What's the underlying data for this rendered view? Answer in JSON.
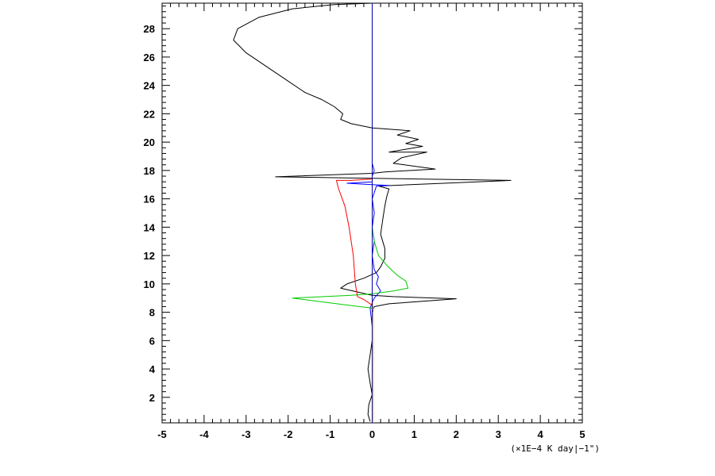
{
  "chart_data": {
    "type": "line",
    "title": "",
    "xlabel": "",
    "ylabel": "",
    "x_units_label": "(×1E−4 K day|−1\")",
    "xlim": [
      -5,
      5
    ],
    "ylim": [
      0.2,
      29.8
    ],
    "grid": false,
    "x_ticks": [
      -5,
      -4,
      -3,
      -2,
      -1,
      0,
      1,
      2,
      3,
      4,
      5
    ],
    "y_ticks": [
      2,
      4,
      6,
      8,
      10,
      12,
      14,
      16,
      18,
      20,
      22,
      24,
      26,
      28
    ],
    "series": [
      {
        "color": "#000000",
        "points": [
          [
            -0.05,
            0.3
          ],
          [
            -0.1,
            0.8
          ],
          [
            -0.08,
            1.5
          ],
          [
            0.0,
            2.2
          ],
          [
            -0.05,
            3.0
          ],
          [
            -0.1,
            4.0
          ],
          [
            -0.05,
            5.0
          ],
          [
            0.0,
            6.0
          ],
          [
            0.0,
            7.0
          ],
          [
            0.0,
            8.0
          ],
          [
            0.05,
            8.4
          ],
          [
            0.4,
            8.6
          ],
          [
            2.0,
            8.95
          ],
          [
            0.5,
            9.1
          ],
          [
            0.0,
            9.2
          ],
          [
            -0.3,
            9.4
          ],
          [
            -0.75,
            9.7
          ],
          [
            -0.6,
            10.0
          ],
          [
            -0.2,
            10.4
          ],
          [
            0.1,
            10.8
          ],
          [
            0.2,
            11.2
          ],
          [
            0.3,
            11.8
          ],
          [
            0.3,
            12.5
          ],
          [
            0.2,
            13.5
          ],
          [
            0.25,
            14.5
          ],
          [
            0.3,
            15.5
          ],
          [
            0.35,
            16.2
          ],
          [
            0.4,
            16.7
          ],
          [
            0.15,
            16.9
          ],
          [
            3.3,
            17.3
          ],
          [
            -2.3,
            17.55
          ],
          [
            0.0,
            17.8
          ],
          [
            0.3,
            17.9
          ],
          [
            1.5,
            18.1
          ],
          [
            0.5,
            18.5
          ],
          [
            0.7,
            18.9
          ],
          [
            1.3,
            19.3
          ],
          [
            0.4,
            19.3
          ],
          [
            1.2,
            19.7
          ],
          [
            0.8,
            19.9
          ],
          [
            1.1,
            20.2
          ],
          [
            0.6,
            20.5
          ],
          [
            0.9,
            20.8
          ],
          [
            0.0,
            21.0
          ],
          [
            -0.5,
            21.3
          ],
          [
            -0.75,
            21.6
          ],
          [
            -0.7,
            22.0
          ],
          [
            -0.9,
            22.5
          ],
          [
            -1.2,
            23.0
          ],
          [
            -1.6,
            23.5
          ],
          [
            -2.1,
            24.5
          ],
          [
            -2.5,
            25.3
          ],
          [
            -3.0,
            26.3
          ],
          [
            -3.3,
            27.2
          ],
          [
            -3.2,
            28.0
          ],
          [
            -2.7,
            28.8
          ],
          [
            -1.9,
            29.4
          ],
          [
            -0.9,
            29.7
          ],
          [
            0.0,
            29.8
          ]
        ]
      },
      {
        "color": "#0000ff",
        "points": [
          [
            0.0,
            0.3
          ],
          [
            0.0,
            2.0
          ],
          [
            0.0,
            5.0
          ],
          [
            0.0,
            7.0
          ],
          [
            -0.05,
            8.3
          ],
          [
            0.05,
            9.0
          ],
          [
            0.2,
            9.5
          ],
          [
            0.1,
            10.0
          ],
          [
            0.15,
            10.5
          ],
          [
            0.05,
            11.0
          ],
          [
            0.0,
            12.0
          ],
          [
            0.05,
            13.0
          ],
          [
            0.0,
            14.0
          ],
          [
            0.05,
            15.0
          ],
          [
            0.0,
            16.0
          ],
          [
            0.1,
            16.9
          ],
          [
            0.4,
            16.95
          ],
          [
            0.0,
            17.0
          ],
          [
            -0.6,
            17.1
          ],
          [
            0.0,
            17.2
          ],
          [
            0.0,
            17.6
          ],
          [
            0.05,
            18.0
          ],
          [
            0.0,
            18.5
          ],
          [
            0.0,
            29.8
          ]
        ]
      },
      {
        "color": "#00cc00",
        "points": [
          [
            0.0,
            0.3
          ],
          [
            0.0,
            5.0
          ],
          [
            0.0,
            8.3
          ],
          [
            -0.3,
            8.4
          ],
          [
            -1.1,
            8.7
          ],
          [
            -1.9,
            9.0
          ],
          [
            -0.5,
            9.2
          ],
          [
            0.0,
            9.3
          ],
          [
            0.5,
            9.5
          ],
          [
            0.85,
            9.7
          ],
          [
            0.8,
            10.2
          ],
          [
            0.6,
            10.6
          ],
          [
            0.35,
            11.3
          ],
          [
            0.15,
            12.0
          ],
          [
            0.05,
            13.0
          ],
          [
            0.0,
            14.0
          ],
          [
            0.0,
            29.8
          ]
        ]
      },
      {
        "color": "#ff0000",
        "points": [
          [
            0.0,
            0.3
          ],
          [
            0.0,
            8.5
          ],
          [
            -0.2,
            8.9
          ],
          [
            -0.35,
            9.1
          ],
          [
            -0.4,
            10.0
          ],
          [
            -0.45,
            12.0
          ],
          [
            -0.55,
            14.0
          ],
          [
            -0.65,
            15.5
          ],
          [
            -0.8,
            16.7
          ],
          [
            -0.85,
            17.3
          ],
          [
            -0.5,
            17.3
          ],
          [
            0.0,
            17.4
          ],
          [
            0.0,
            29.8
          ]
        ]
      },
      {
        "color": "#ffcc00",
        "points": [
          [
            0.03,
            0.3
          ],
          [
            0.03,
            4.0
          ],
          [
            0.03,
            8.0
          ],
          [
            0.0,
            9.0
          ],
          [
            0.0,
            17.0
          ],
          [
            0.0,
            29.8
          ]
        ]
      },
      {
        "color": "#0000aa",
        "points": [
          [
            0.0,
            0.2
          ],
          [
            0.0,
            29.8
          ]
        ]
      }
    ]
  }
}
